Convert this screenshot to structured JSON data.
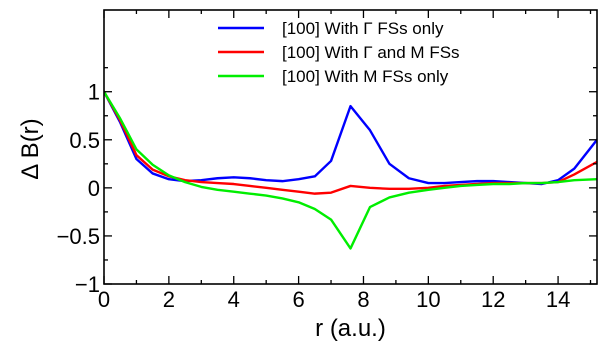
{
  "chart_data": {
    "type": "line",
    "title": "",
    "xlabel": "r (a.u.)",
    "ylabel": "Δ B(r)",
    "xlim": [
      0,
      15.2
    ],
    "ylim": [
      -1,
      1.85
    ],
    "xticks": [
      0,
      2,
      4,
      6,
      8,
      10,
      12,
      14
    ],
    "xtick_labels": [
      "0",
      "2",
      "4",
      "6",
      "8",
      "10",
      "12",
      "14"
    ],
    "yticks": [
      -1,
      -0.5,
      0,
      0.5,
      1
    ],
    "ytick_labels": [
      "−1",
      "−0.5",
      "0",
      "0.5",
      "1"
    ],
    "grid": false,
    "legend_position": "top-right",
    "series": [
      {
        "name": "[100] With Γ FSs only",
        "color": "#0000ff",
        "x": [
          0,
          0.5,
          1.0,
          1.5,
          2.0,
          2.5,
          3.0,
          3.5,
          4.0,
          4.5,
          5.0,
          5.5,
          6.0,
          6.5,
          7.0,
          7.6,
          8.2,
          8.8,
          9.4,
          10.0,
          10.5,
          11.0,
          11.5,
          12.0,
          12.5,
          13.0,
          13.5,
          14.0,
          14.5,
          15.2
        ],
        "y": [
          1.0,
          0.68,
          0.3,
          0.15,
          0.09,
          0.07,
          0.08,
          0.1,
          0.11,
          0.1,
          0.08,
          0.07,
          0.09,
          0.12,
          0.28,
          0.85,
          0.6,
          0.25,
          0.1,
          0.05,
          0.05,
          0.06,
          0.07,
          0.07,
          0.06,
          0.05,
          0.04,
          0.08,
          0.2,
          0.5
        ]
      },
      {
        "name": "[100] With Γ and M FSs",
        "color": "#ff0000",
        "x": [
          0,
          0.5,
          1.0,
          1.5,
          2.0,
          2.5,
          3.0,
          3.5,
          4.0,
          4.5,
          5.0,
          5.5,
          6.0,
          6.5,
          7.0,
          7.6,
          8.2,
          8.8,
          9.4,
          10.0,
          10.5,
          11.0,
          11.5,
          12.0,
          12.5,
          13.0,
          13.5,
          14.0,
          14.5,
          15.2
        ],
        "y": [
          1.0,
          0.7,
          0.34,
          0.19,
          0.12,
          0.08,
          0.06,
          0.05,
          0.04,
          0.02,
          0.0,
          -0.02,
          -0.04,
          -0.06,
          -0.05,
          0.02,
          0.0,
          -0.01,
          -0.01,
          0.0,
          0.02,
          0.03,
          0.04,
          0.05,
          0.05,
          0.05,
          0.05,
          0.06,
          0.14,
          0.27
        ]
      },
      {
        "name": "[100] With M FSs only",
        "color": "#00ee00",
        "x": [
          0,
          0.5,
          1.0,
          1.5,
          2.0,
          2.5,
          3.0,
          3.5,
          4.0,
          4.5,
          5.0,
          5.5,
          6.0,
          6.5,
          7.0,
          7.6,
          8.2,
          8.8,
          9.4,
          10.0,
          10.5,
          11.0,
          11.5,
          12.0,
          12.5,
          13.0,
          13.5,
          14.0,
          14.5,
          15.2
        ],
        "y": [
          1.0,
          0.72,
          0.4,
          0.24,
          0.13,
          0.06,
          0.01,
          -0.02,
          -0.04,
          -0.06,
          -0.08,
          -0.11,
          -0.15,
          -0.22,
          -0.33,
          -0.63,
          -0.2,
          -0.1,
          -0.05,
          -0.02,
          0.0,
          0.02,
          0.03,
          0.04,
          0.04,
          0.05,
          0.05,
          0.06,
          0.08,
          0.09
        ]
      }
    ]
  }
}
